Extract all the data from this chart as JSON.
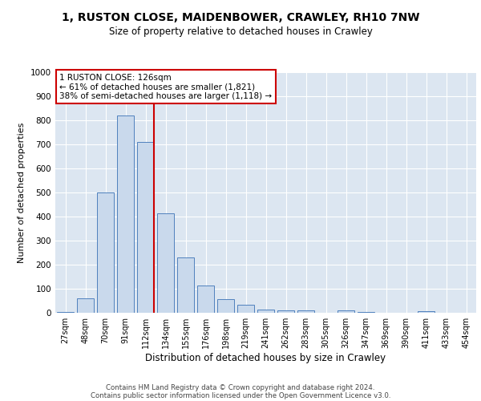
{
  "title_line1": "1, RUSTON CLOSE, MAIDENBOWER, CRAWLEY, RH10 7NW",
  "title_line2": "Size of property relative to detached houses in Crawley",
  "xlabel": "Distribution of detached houses by size in Crawley",
  "ylabel": "Number of detached properties",
  "footer_line1": "Contains HM Land Registry data © Crown copyright and database right 2024.",
  "footer_line2": "Contains public sector information licensed under the Open Government Licence v3.0.",
  "categories": [
    "27sqm",
    "48sqm",
    "70sqm",
    "91sqm",
    "112sqm",
    "134sqm",
    "155sqm",
    "176sqm",
    "198sqm",
    "219sqm",
    "241sqm",
    "262sqm",
    "283sqm",
    "305sqm",
    "326sqm",
    "347sqm",
    "369sqm",
    "390sqm",
    "411sqm",
    "433sqm",
    "454sqm"
  ],
  "values": [
    5,
    60,
    500,
    820,
    710,
    415,
    230,
    115,
    57,
    32,
    15,
    10,
    10,
    0,
    10,
    5,
    0,
    0,
    8,
    0,
    0
  ],
  "bar_color": "#c9d9ec",
  "bar_edge_color": "#4f81bd",
  "background_color": "#dce6f1",
  "grid_color": "#ffffff",
  "annotation_text": "1 RUSTON CLOSE: 126sqm\n← 61% of detached houses are smaller (1,821)\n38% of semi-detached houses are larger (1,118) →",
  "annotation_box_color": "#ffffff",
  "annotation_box_edge_color": "#cc0000",
  "vline_color": "#cc0000",
  "vline_pos": 4.43,
  "ylim": [
    0,
    1000
  ],
  "yticks": [
    0,
    100,
    200,
    300,
    400,
    500,
    600,
    700,
    800,
    900,
    1000
  ]
}
